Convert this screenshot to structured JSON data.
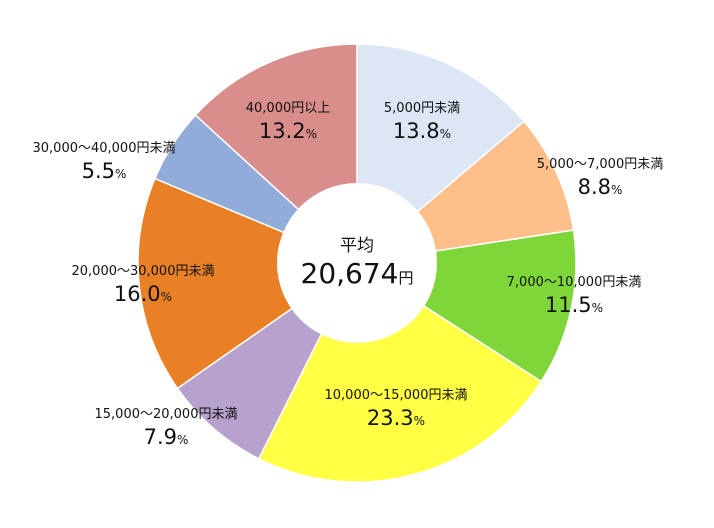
{
  "chart_data": {
    "type": "pie",
    "donut": true,
    "center_label": "平均",
    "center_value": "20,674",
    "center_unit": "円",
    "value_suffix": "%",
    "colors_note": "slice colors",
    "slices": [
      {
        "label": "5,000円未満",
        "value": 13.8,
        "color": "#dce6f4"
      },
      {
        "label": "5,000〜7,000円未満",
        "value": 8.8,
        "color": "#ffbf8a"
      },
      {
        "label": "7,000〜10,000円未満",
        "value": 11.5,
        "color": "#7ed638"
      },
      {
        "label": "10,000〜15,000円未満",
        "value": 23.3,
        "color": "#ffff44"
      },
      {
        "label": "15,000〜20,000円未満",
        "value": 7.9,
        "color": "#b6a2cc"
      },
      {
        "label": "20,000〜30,000円未満",
        "value": 16.0,
        "color": "#ea8026"
      },
      {
        "label": "30,000〜40,000円未満",
        "value": 5.5,
        "color": "#91acd8"
      },
      {
        "label": "40,000円以上",
        "value": 13.2,
        "color": "#d98e8c"
      }
    ]
  }
}
